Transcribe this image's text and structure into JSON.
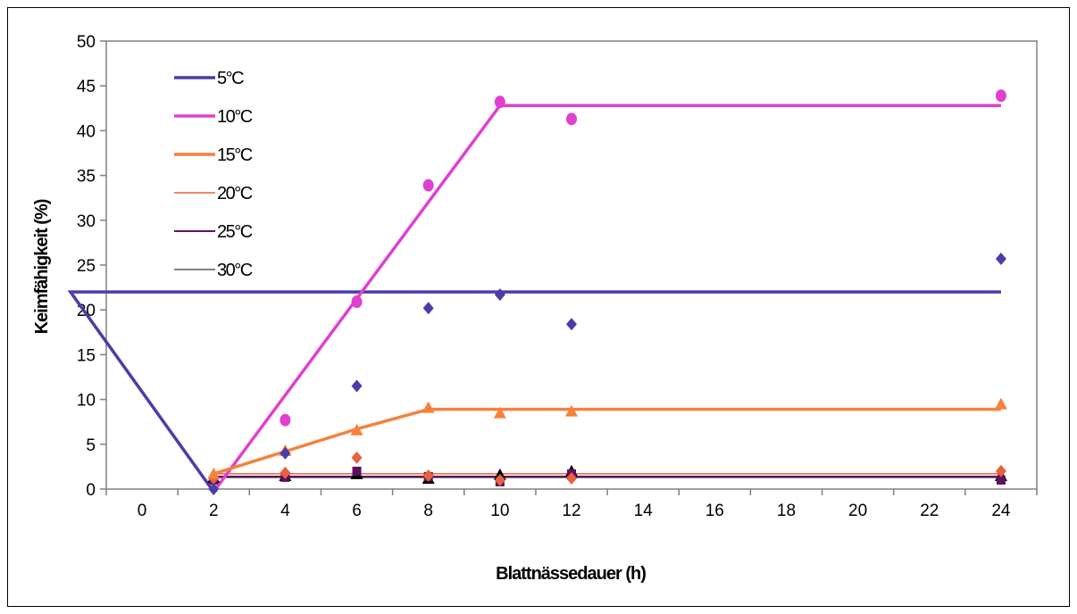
{
  "chart_data": {
    "type": "line",
    "xlabel": "Blattnässedauer (h)",
    "ylabel": "Keimfähigkeit (%)",
    "categories": [
      "0",
      "2",
      "4",
      "6",
      "8",
      "10",
      "12",
      "14",
      "16",
      "18",
      "20",
      "22",
      "24"
    ],
    "ylim": [
      0,
      50
    ],
    "yticks": [
      0,
      5,
      10,
      15,
      20,
      25,
      30,
      35,
      40,
      45,
      50
    ],
    "grid": false,
    "legend": "top-left",
    "series": [
      {
        "name": "5°C",
        "color": "#4B3CA8",
        "marker": "diamond",
        "line_width": 3.5,
        "points": [
          [
            2,
            0
          ],
          [
            4,
            4
          ],
          [
            6,
            11.5
          ],
          [
            8,
            20.2
          ],
          [
            10,
            21.7
          ],
          [
            12,
            18.4
          ],
          [
            24,
            25.7
          ]
        ],
        "fit": [
          [
            2,
            -0.3
          ],
          [
            9,
            22
          ],
          [
            24,
            22
          ]
        ]
      },
      {
        "name": "10°C",
        "color": "#E040D0",
        "marker": "circle",
        "line_width": 3.5,
        "points": [
          [
            4,
            7.7
          ],
          [
            6,
            20.9
          ],
          [
            8,
            33.9
          ],
          [
            10,
            43.2
          ],
          [
            12,
            41.3
          ],
          [
            24,
            43.9
          ]
        ],
        "fit": [
          [
            2,
            -0.3
          ],
          [
            10,
            42.8
          ],
          [
            24,
            42.8
          ]
        ]
      },
      {
        "name": "15°C",
        "color": "#F5813C",
        "marker": "triangle",
        "line_width": 3.5,
        "points": [
          [
            2,
            1.7
          ],
          [
            4,
            4.3
          ],
          [
            6,
            6.6
          ],
          [
            8,
            9.1
          ],
          [
            10,
            8.5
          ],
          [
            12,
            8.7
          ],
          [
            24,
            9.5
          ]
        ],
        "fit": [
          [
            2,
            1.7
          ],
          [
            6,
            6.7
          ],
          [
            8,
            8.9
          ],
          [
            24,
            8.9
          ]
        ]
      },
      {
        "name": "20°C",
        "color": "#E8603C",
        "marker": "diamond",
        "line_width": 1.5,
        "points": [
          [
            2,
            1.2
          ],
          [
            4,
            1.8
          ],
          [
            6,
            3.5
          ],
          [
            8,
            1.5
          ],
          [
            10,
            1.0
          ],
          [
            12,
            1.2
          ],
          [
            24,
            2.0
          ]
        ],
        "fit": [
          [
            2,
            1.7
          ],
          [
            24,
            1.7
          ]
        ]
      },
      {
        "name": "25°C",
        "color": "#5C1060",
        "marker": "square",
        "line_width": 2,
        "points": [
          [
            2,
            1.0
          ],
          [
            4,
            1.3
          ],
          [
            6,
            2.0
          ],
          [
            8,
            1.4
          ],
          [
            10,
            0.8
          ],
          [
            12,
            1.7
          ],
          [
            24,
            1.0
          ]
        ],
        "fit": [
          [
            2,
            1.4
          ],
          [
            24,
            1.4
          ]
        ]
      },
      {
        "name": "30°C",
        "color": "#000000",
        "marker": "triangle",
        "line_width": 1,
        "points": [
          [
            2,
            1.3
          ],
          [
            4,
            1.5
          ],
          [
            6,
            1.7
          ],
          [
            8,
            1.2
          ],
          [
            10,
            1.6
          ],
          [
            12,
            2.0
          ],
          [
            24,
            1.5
          ]
        ],
        "fit": [
          [
            2,
            1.3
          ],
          [
            24,
            1.3
          ]
        ]
      }
    ]
  }
}
